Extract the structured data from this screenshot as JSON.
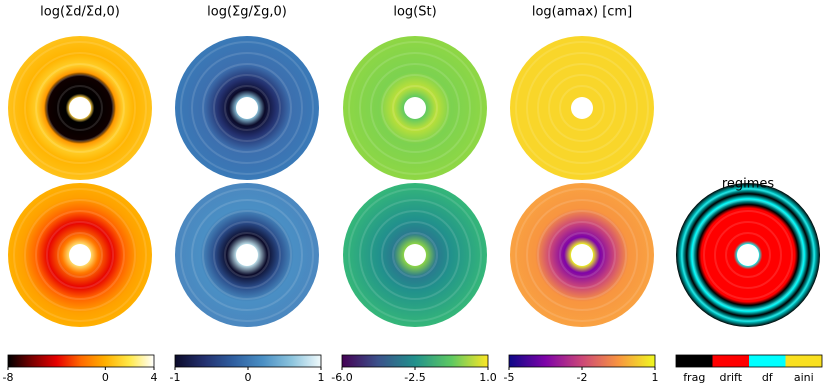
{
  "chart_data": [
    {
      "type": "colorbar",
      "title": "log(Σd/Σd,0)",
      "xlim": [
        -8,
        4
      ],
      "xticks": [
        -8,
        0,
        4
      ],
      "colors": [
        "#000000",
        "#7a0000",
        "#e60000",
        "#ff6a00",
        "#ffb000",
        "#ffe94a",
        "#ffffff"
      ]
    },
    {
      "type": "colorbar",
      "title": "log(Σg/Σg,0)",
      "xlim": [
        -1,
        1
      ],
      "xticks": [
        -1,
        0,
        1
      ],
      "colors": [
        "#0b0b2a",
        "#23306e",
        "#2f5fa0",
        "#4a8fc4",
        "#8cc4dd",
        "#f0fafc"
      ]
    },
    {
      "type": "colorbar",
      "title": "log(St)",
      "xlim": [
        -6,
        1
      ],
      "xticks": [
        {
          "value": -6,
          "label": "-6.0"
        },
        {
          "value": -2.5,
          "label": "-2.5"
        },
        {
          "value": 1,
          "label": "1.0"
        }
      ],
      "colors": [
        "#440154",
        "#3b528b",
        "#21918c",
        "#5ec962",
        "#fde725"
      ]
    },
    {
      "type": "colorbar",
      "title": "log(amax) [cm]",
      "xlim": [
        -5,
        1
      ],
      "xticks": [
        -5,
        -2,
        1
      ],
      "colors": [
        "#0d0887",
        "#7e03a8",
        "#cc4778",
        "#f89540",
        "#f0f921"
      ]
    },
    {
      "type": "categorical-colorbar",
      "title": "regimes",
      "categories": [
        "frag",
        "drift",
        "df",
        "aini"
      ],
      "colors": [
        "#000000",
        "#ff0000",
        "#00ffff",
        "#f9e020"
      ]
    }
  ]
}
